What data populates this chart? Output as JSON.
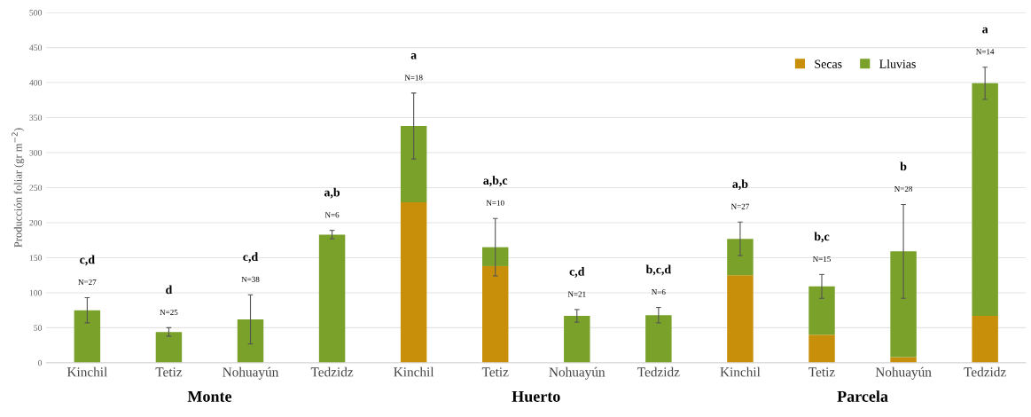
{
  "chart_data": {
    "type": "bar",
    "stacked": true,
    "ylabel": "Producción foliar (gr m$^{−2}$)",
    "categories": [
      "Kinchil",
      "Tetiz",
      "Nohuayún",
      "Tedzidz",
      "Kinchil",
      "Tetiz",
      "Nohuayún",
      "Tedzidz",
      "Kinchil",
      "Tetiz",
      "Nohuayún",
      "Tedzidz"
    ],
    "series": [
      {
        "name": "Secas",
        "color": "#c8900a",
        "values": [
          0,
          0,
          0,
          0,
          229,
          138,
          0,
          0,
          125,
          40,
          8,
          67
        ]
      },
      {
        "name": "Lluvias",
        "color": "#7aa12a",
        "values": [
          75,
          44,
          62,
          183,
          109,
          27,
          67,
          68,
          52,
          69,
          151,
          332
        ],
        "errors": [
          18,
          6,
          35,
          6,
          47,
          41,
          9,
          11,
          24,
          17,
          67,
          23
        ]
      }
    ],
    "ylim": [
      0,
      500
    ],
    "yticks": [
      0,
      50,
      100,
      150,
      200,
      250,
      300,
      350,
      400,
      450,
      500
    ],
    "grid": "y",
    "legend": "top right",
    "annotations": [
      "c,d",
      "N=27",
      "d",
      "N=25",
      "c,d",
      "N=38",
      "a,b",
      "N=6",
      "a",
      "N=18",
      "a,b,c",
      "N=10",
      "c,d",
      "N=21",
      "b,c,d",
      "N=6",
      "a,b",
      "N=27",
      "b,c",
      "N=15",
      "b",
      "N=28",
      "a",
      "N=14",
      "Monte",
      "Huerto",
      "Parcela"
    ]
  }
}
